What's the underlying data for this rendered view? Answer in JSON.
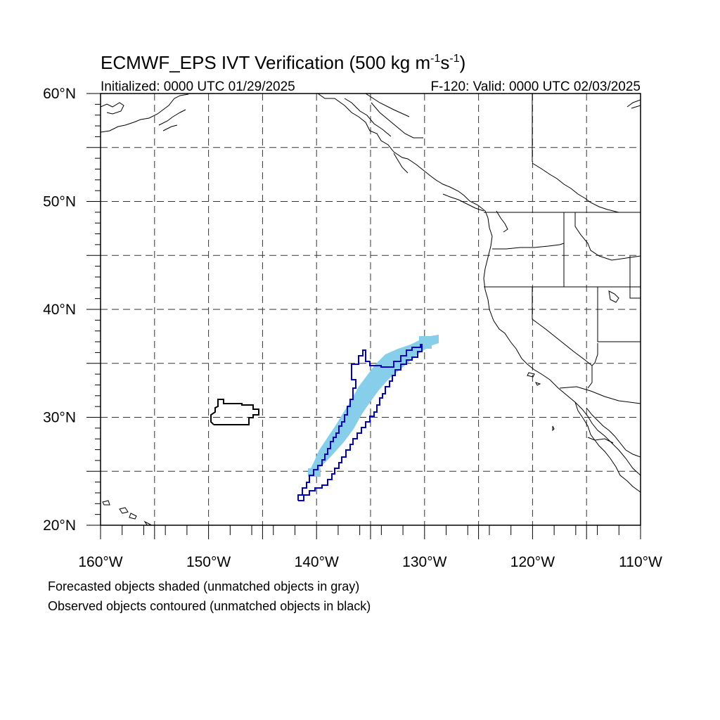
{
  "title": {
    "main": "ECMWF_EPS IVT Verification (500 kg m",
    "sup1": "-1",
    "mid": "s",
    "sup2": "-1",
    "end": ")",
    "initialized": "Initialized: 0000 UTC 01/29/2025",
    "valid": "F-120: Valid: 0000 UTC 02/03/2025"
  },
  "map": {
    "lon_range": [
      -160,
      -110
    ],
    "lat_range": [
      20,
      60
    ],
    "lon_tick_labels": [
      "160°W",
      "150°W",
      "140°W",
      "130°W",
      "120°W",
      "110°W"
    ],
    "lat_tick_labels": [
      "20°N",
      "30°N",
      "40°N",
      "50°N",
      "60°N"
    ],
    "gridlines": "dashed every 5°"
  },
  "objects": {
    "forecast_matched": {
      "label": "Forecasted object (matched)",
      "color": "#87ceeb"
    },
    "observed_matched": {
      "label": "Observed object (matched)",
      "color": "#0000cc"
    },
    "observed_unmatched": {
      "label": "Observed object (unmatched)",
      "color": "#000000"
    }
  },
  "footer": {
    "line1": "Forecasted objects shaded (unmatched objects in gray)",
    "line2": "Observed objects contoured (unmatched objects in black)"
  }
}
